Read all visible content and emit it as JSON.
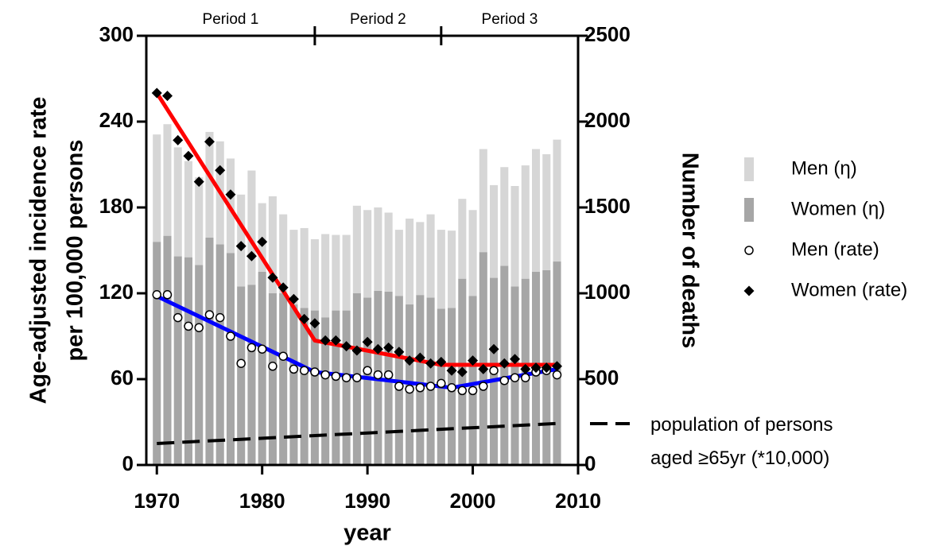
{
  "chart_data": {
    "type": "bar",
    "stacked": true,
    "xlabel": "year",
    "ylabel": [
      "Age-adjusted incidence rate",
      "per 100,000 persons"
    ],
    "y2label": "Number of deaths",
    "xlim": [
      1969,
      2010
    ],
    "xticks": [
      1970,
      1980,
      1990,
      2000,
      2010
    ],
    "ylim": [
      0,
      300
    ],
    "yticks": [
      0,
      60,
      120,
      180,
      240,
      300
    ],
    "y2lim": [
      0,
      2500
    ],
    "y2ticks": [
      0,
      500,
      1000,
      1500,
      2000,
      2500
    ],
    "period_labels": [
      "Period 1",
      "Period 2",
      "Period 3"
    ],
    "period_breaks": [
      1985,
      1997
    ],
    "x": [
      1970,
      1971,
      1972,
      1973,
      1974,
      1975,
      1976,
      1977,
      1978,
      1979,
      1980,
      1981,
      1982,
      1983,
      1984,
      1985,
      1986,
      1987,
      1988,
      1989,
      1990,
      1991,
      1992,
      1993,
      1994,
      1995,
      1996,
      1997,
      1998,
      1999,
      2000,
      2001,
      2002,
      2003,
      2004,
      2005,
      2006,
      2007,
      2008
    ],
    "series": [
      {
        "name": "Men (η)",
        "type": "bar",
        "axis": "y2",
        "color": "#d6d6d6",
        "values": [
          625,
          650,
          635,
          560,
          510,
          615,
          600,
          550,
          535,
          665,
          400,
          565,
          460,
          435,
          465,
          415,
          485,
          440,
          440,
          510,
          510,
          485,
          460,
          385,
          500,
          425,
          485,
          460,
          450,
          465,
          500,
          600,
          540,
          575,
          585,
          660,
          715,
          675,
          710
        ]
      },
      {
        "name": "Women (η)",
        "type": "bar",
        "axis": "y2",
        "color": "#a6a6a6",
        "values": [
          1300,
          1335,
          1215,
          1210,
          1165,
          1325,
          1285,
          1235,
          1040,
          1050,
          1125,
          1000,
          1000,
          935,
          915,
          900,
          860,
          900,
          900,
          1000,
          975,
          1015,
          1010,
          985,
          935,
          990,
          975,
          910,
          915,
          1085,
          985,
          1240,
          1090,
          1160,
          1040,
          1085,
          1125,
          1135,
          1185
        ]
      },
      {
        "name": "Men (rate)",
        "type": "scatter",
        "marker": "circle",
        "color": "#ffffff",
        "values": [
          119,
          119,
          103,
          97,
          96,
          105,
          103,
          90,
          71,
          82,
          81,
          69,
          76,
          67,
          66,
          65,
          63,
          62,
          61,
          61,
          66,
          63,
          63,
          55,
          53,
          54,
          55,
          57,
          54,
          52,
          52,
          55,
          66,
          59,
          61,
          61,
          65,
          66,
          63
        ]
      },
      {
        "name": "Women (rate)",
        "type": "scatter",
        "marker": "diamond",
        "color": "#000000",
        "values": [
          260,
          258,
          227,
          216,
          198,
          226,
          206,
          189,
          153,
          146,
          156,
          131,
          124,
          116,
          102,
          99,
          87,
          87,
          83,
          80,
          86,
          81,
          82,
          79,
          73,
          75,
          71,
          72,
          66,
          65,
          73,
          67,
          81,
          71,
          74,
          67,
          68,
          68,
          69
        ]
      },
      {
        "type": "line",
        "color": "#ff0000",
        "x": [
          1970,
          1985,
          1997,
          2008
        ],
        "values": [
          260,
          87,
          70,
          70
        ]
      },
      {
        "type": "line",
        "color": "#0000ff",
        "x": [
          1970,
          1985,
          1998,
          2008
        ],
        "values": [
          118,
          65,
          54,
          67
        ]
      },
      {
        "name": "population of persons aged ≥65yr (*10,000)",
        "type": "line",
        "dash": true,
        "color": "#000000",
        "x": [
          1970,
          2008
        ],
        "values": [
          15,
          29
        ]
      }
    ]
  }
}
